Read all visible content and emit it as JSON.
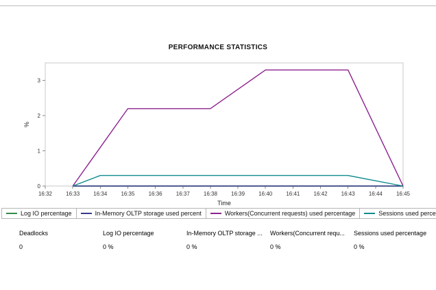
{
  "chart": {
    "title": "PERFORMANCE STATISTICS"
  },
  "chart_data": {
    "type": "line",
    "title": "PERFORMANCE STATISTICS",
    "xlabel": "Time",
    "ylabel": "%",
    "x_categories": [
      "16:32",
      "16:33",
      "16:34",
      "16:35",
      "16:36",
      "16:37",
      "16:38",
      "16:39",
      "16:40",
      "16:41",
      "16:42",
      "16:43",
      "16:44",
      "16:45"
    ],
    "ylim": [
      0,
      3.5
    ],
    "yticks": [
      0,
      1,
      2,
      3
    ],
    "grid": false,
    "legend_position": "bottom",
    "series": [
      {
        "name": "Log IO percentage",
        "color": "#2f8b44",
        "points": [
          [
            "16:33",
            0
          ],
          [
            "16:34",
            0
          ],
          [
            "16:35",
            0
          ],
          [
            "16:36",
            0
          ],
          [
            "16:37",
            0
          ],
          [
            "16:38",
            0
          ],
          [
            "16:39",
            0
          ],
          [
            "16:40",
            0
          ],
          [
            "16:41",
            0
          ],
          [
            "16:42",
            0
          ],
          [
            "16:43",
            0
          ],
          [
            "16:44",
            0
          ],
          [
            "16:45",
            0
          ]
        ]
      },
      {
        "name": "In-Memory OLTP storage used percent",
        "color": "#38388c",
        "points": [
          [
            "16:33",
            0
          ],
          [
            "16:34",
            0
          ],
          [
            "16:35",
            0
          ],
          [
            "16:36",
            0
          ],
          [
            "16:37",
            0
          ],
          [
            "16:38",
            0
          ],
          [
            "16:39",
            0
          ],
          [
            "16:40",
            0
          ],
          [
            "16:41",
            0
          ],
          [
            "16:42",
            0
          ],
          [
            "16:43",
            0
          ],
          [
            "16:44",
            0
          ],
          [
            "16:45",
            0
          ]
        ]
      },
      {
        "name": "Workers(Concurrent requests) used percentage",
        "color": "#8c218f",
        "points": [
          [
            "16:33",
            0
          ],
          [
            "16:34",
            1.1
          ],
          [
            "16:35",
            2.2
          ],
          [
            "16:36",
            2.2
          ],
          [
            "16:37",
            2.2
          ],
          [
            "16:38",
            2.2
          ],
          [
            "16:39",
            2.75
          ],
          [
            "16:40",
            3.3
          ],
          [
            "16:41",
            3.3
          ],
          [
            "16:42",
            3.3
          ],
          [
            "16:43",
            3.3
          ],
          [
            "16:44",
            1.65
          ],
          [
            "16:45",
            0
          ]
        ]
      },
      {
        "name": "Sessions used percentage",
        "color": "#0f8b8d",
        "points": [
          [
            "16:33",
            0
          ],
          [
            "16:34",
            0.3
          ],
          [
            "16:35",
            0.3
          ],
          [
            "16:36",
            0.3
          ],
          [
            "16:37",
            0.3
          ],
          [
            "16:38",
            0.3
          ],
          [
            "16:39",
            0.3
          ],
          [
            "16:40",
            0.3
          ],
          [
            "16:41",
            0.3
          ],
          [
            "16:42",
            0.3
          ],
          [
            "16:43",
            0.3
          ],
          [
            "16:44",
            0.15
          ],
          [
            "16:45",
            0
          ]
        ]
      }
    ]
  },
  "stats": [
    {
      "label": "Deadlocks",
      "value": "0"
    },
    {
      "label": "Log IO percentage",
      "value": "0 %"
    },
    {
      "label": "In-Memory OLTP storage ...",
      "value": "0 %"
    },
    {
      "label": "Workers(Concurrent requ...",
      "value": "0 %"
    },
    {
      "label": "Sessions used percentage",
      "value": "0 %"
    }
  ]
}
